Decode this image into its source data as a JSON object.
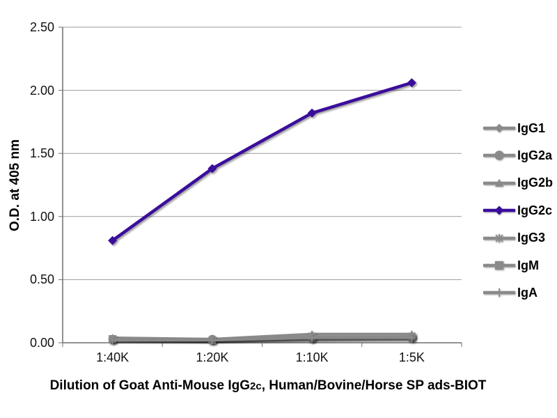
{
  "figure": {
    "background": "#FFFFFF"
  },
  "colors": {
    "accent_purple": "#3A0D9B",
    "series_gray": "#8A8A8A",
    "gridline": "#9B9B9B",
    "axis": "#6F6F6F",
    "text": "#000000"
  },
  "chart_data": {
    "type": "line",
    "title": "",
    "xlabel": "Dilution of Goat Anti-Mouse IgG2c, Human/Bovine/Horse SP ads-BIOT",
    "xlabel_parts": [
      "Dilution of Goat Anti-Mouse IgG",
      "2c",
      ", Human/Bovine/Horse SP ads-BIOT"
    ],
    "ylabel": "O.D. at 405 nm",
    "categories": [
      "1:40K",
      "1:20K",
      "1:10K",
      "1:5K"
    ],
    "ylim": [
      0,
      2.5
    ],
    "yticks": [
      0,
      0.5,
      1,
      1.5,
      2,
      2.5
    ],
    "ytick_labels": [
      "0.00",
      "0.50",
      "1.00",
      "1.50",
      "2.00",
      "2.50"
    ],
    "grid": true,
    "legend_position": "right",
    "series": [
      {
        "name": "IgG1",
        "marker": "diamond",
        "color": "#8A8A8A",
        "values": [
          0.03,
          0.02,
          0.03,
          0.04
        ]
      },
      {
        "name": "IgG2a",
        "marker": "circle",
        "color": "#8A8A8A",
        "values": [
          0.03,
          0.03,
          0.04,
          0.05
        ]
      },
      {
        "name": "IgG2b",
        "marker": "triangle",
        "color": "#8A8A8A",
        "values": [
          0.04,
          0.03,
          0.07,
          0.07
        ]
      },
      {
        "name": "IgG2c",
        "marker": "diamond",
        "color": "#3A0D9B",
        "values": [
          0.81,
          1.38,
          1.82,
          2.06
        ]
      },
      {
        "name": "IgG3",
        "marker": "asterisk",
        "color": "#8A8A8A",
        "values": [
          0.02,
          0.02,
          0.03,
          0.03
        ]
      },
      {
        "name": "IgM",
        "marker": "square",
        "color": "#8A8A8A",
        "values": [
          0.03,
          0.02,
          0.05,
          0.05
        ]
      },
      {
        "name": "IgA",
        "marker": "plus",
        "color": "#8A8A8A",
        "values": [
          0.02,
          0.02,
          0.04,
          0.04
        ]
      }
    ]
  }
}
